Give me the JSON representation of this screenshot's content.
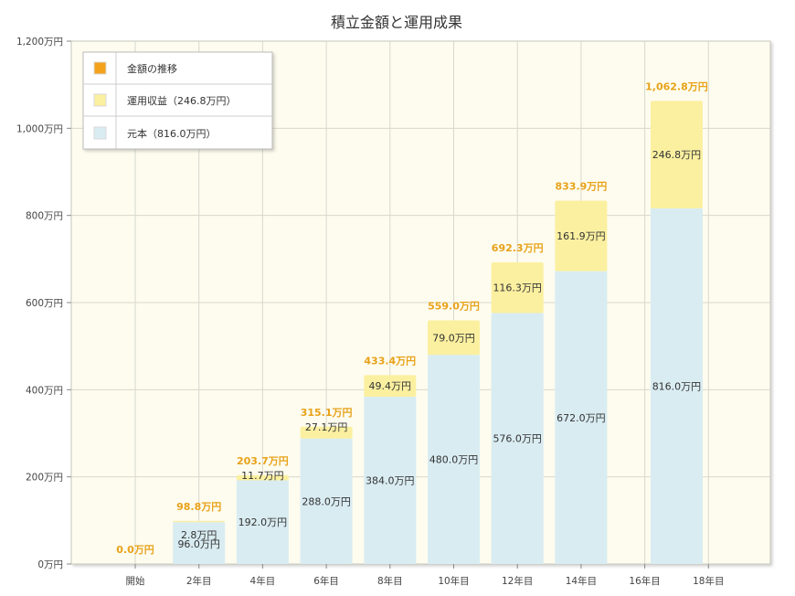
{
  "chart_data": {
    "type": "bar",
    "stacked": true,
    "title": "積立金額と運用成果",
    "categories": [
      "開始",
      "2年目",
      "4年目",
      "6年目",
      "8年目",
      "10年目",
      "12年目",
      "14年目",
      "16年目",
      "18年目"
    ],
    "ylim": [
      0,
      1200
    ],
    "yticks": [
      "0万円",
      "200万円",
      "400万円",
      "600万円",
      "800万円",
      "1,000万円",
      "1,200万円"
    ],
    "ytick_values": [
      0,
      200,
      400,
      600,
      800,
      1000,
      1200
    ],
    "grid": true,
    "legend_position": "top-left",
    "legend": [
      {
        "label": "金額の推移",
        "color": "#f4a21c"
      },
      {
        "label": "運用収益（246.8万円）",
        "color": "#fbf0a0"
      },
      {
        "label": "元本（816.0万円）",
        "color": "#d9ecf2"
      }
    ],
    "bars": [
      {
        "index": 0,
        "principal": 0,
        "gain": 0,
        "total": 0.0,
        "total_label": "0.0万円",
        "principal_label": "",
        "gain_label": ""
      },
      {
        "index": 1,
        "principal": 96.0,
        "gain": 2.8,
        "total": 98.8,
        "total_label": "98.8万円",
        "principal_label": "96.0万円",
        "gain_label": "2.8万円"
      },
      {
        "index": 2,
        "principal": 192.0,
        "gain": 11.7,
        "total": 203.7,
        "total_label": "203.7万円",
        "principal_label": "192.0万円",
        "gain_label": "11.7万円"
      },
      {
        "index": 3,
        "principal": 288.0,
        "gain": 27.1,
        "total": 315.1,
        "total_label": "315.1万円",
        "principal_label": "288.0万円",
        "gain_label": "27.1万円"
      },
      {
        "index": 4,
        "principal": 384.0,
        "gain": 49.4,
        "total": 433.4,
        "total_label": "433.4万円",
        "principal_label": "384.0万円",
        "gain_label": "49.4万円"
      },
      {
        "index": 5,
        "principal": 480.0,
        "gain": 79.0,
        "total": 559.0,
        "total_label": "559.0万円",
        "principal_label": "480.0万円",
        "gain_label": "79.0万円"
      },
      {
        "index": 6,
        "principal": 576.0,
        "gain": 116.3,
        "total": 692.3,
        "total_label": "692.3万円",
        "principal_label": "576.0万円",
        "gain_label": "116.3万円"
      },
      {
        "index": 7,
        "principal": 672.0,
        "gain": 161.9,
        "total": 833.9,
        "total_label": "833.9万円",
        "principal_label": "672.0万円",
        "gain_label": "161.9万円"
      },
      {
        "index": 8.5,
        "principal": 816.0,
        "gain": 246.8,
        "total": 1062.8,
        "total_label": "1,062.8万円",
        "principal_label": "816.0万円",
        "gain_label": "246.8万円"
      }
    ],
    "colors": {
      "principal": "#d9ecf2",
      "gain": "#fbf0a0",
      "total_label": "#e8a21a",
      "plot_background": "#fdfcee",
      "grid": "#d8d8d0"
    }
  }
}
